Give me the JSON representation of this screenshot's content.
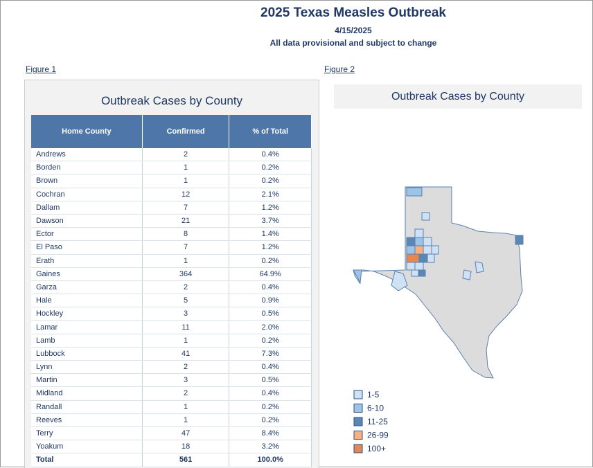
{
  "header": {
    "title": "2025 Texas Measles Outbreak",
    "date": "4/15/2025",
    "note": "All data provisional and subject to change"
  },
  "figure1": {
    "link": "Figure 1",
    "title": "Outbreak Cases by County",
    "columns": [
      "Home County",
      "Confirmed",
      "% of Total"
    ],
    "rows": [
      [
        "Andrews",
        2,
        "0.4%"
      ],
      [
        "Borden",
        1,
        "0.2%"
      ],
      [
        "Brown",
        1,
        "0.2%"
      ],
      [
        "Cochran",
        12,
        "2.1%"
      ],
      [
        "Dallam",
        7,
        "1.2%"
      ],
      [
        "Dawson",
        21,
        "3.7%"
      ],
      [
        "Ector",
        8,
        "1.4%"
      ],
      [
        "El Paso",
        7,
        "1.2%"
      ],
      [
        "Erath",
        1,
        "0.2%"
      ],
      [
        "Gaines",
        364,
        "64.9%"
      ],
      [
        "Garza",
        2,
        "0.4%"
      ],
      [
        "Hale",
        5,
        "0.9%"
      ],
      [
        "Hockley",
        3,
        "0.5%"
      ],
      [
        "Lamar",
        11,
        "2.0%"
      ],
      [
        "Lamb",
        1,
        "0.2%"
      ],
      [
        "Lubbock",
        41,
        "7.3%"
      ],
      [
        "Lynn",
        2,
        "0.4%"
      ],
      [
        "Martin",
        3,
        "0.5%"
      ],
      [
        "Midland",
        2,
        "0.4%"
      ],
      [
        "Randall",
        1,
        "0.2%"
      ],
      [
        "Reeves",
        1,
        "0.2%"
      ],
      [
        "Terry",
        47,
        "8.4%"
      ],
      [
        "Yoakum",
        18,
        "3.2%"
      ]
    ],
    "total": [
      "Total",
      561,
      "100.0%"
    ]
  },
  "figure2": {
    "link": "Figure 2",
    "title": "Outbreak Cases by County",
    "legend": [
      {
        "label": "1-5",
        "color": "#cfe2f3"
      },
      {
        "label": "6-10",
        "color": "#9dc3e6"
      },
      {
        "label": "11-25",
        "color": "#5b87b5"
      },
      {
        "label": "26-99",
        "color": "#f4b183"
      },
      {
        "label": "100+",
        "color": "#e7864f"
      }
    ]
  }
}
